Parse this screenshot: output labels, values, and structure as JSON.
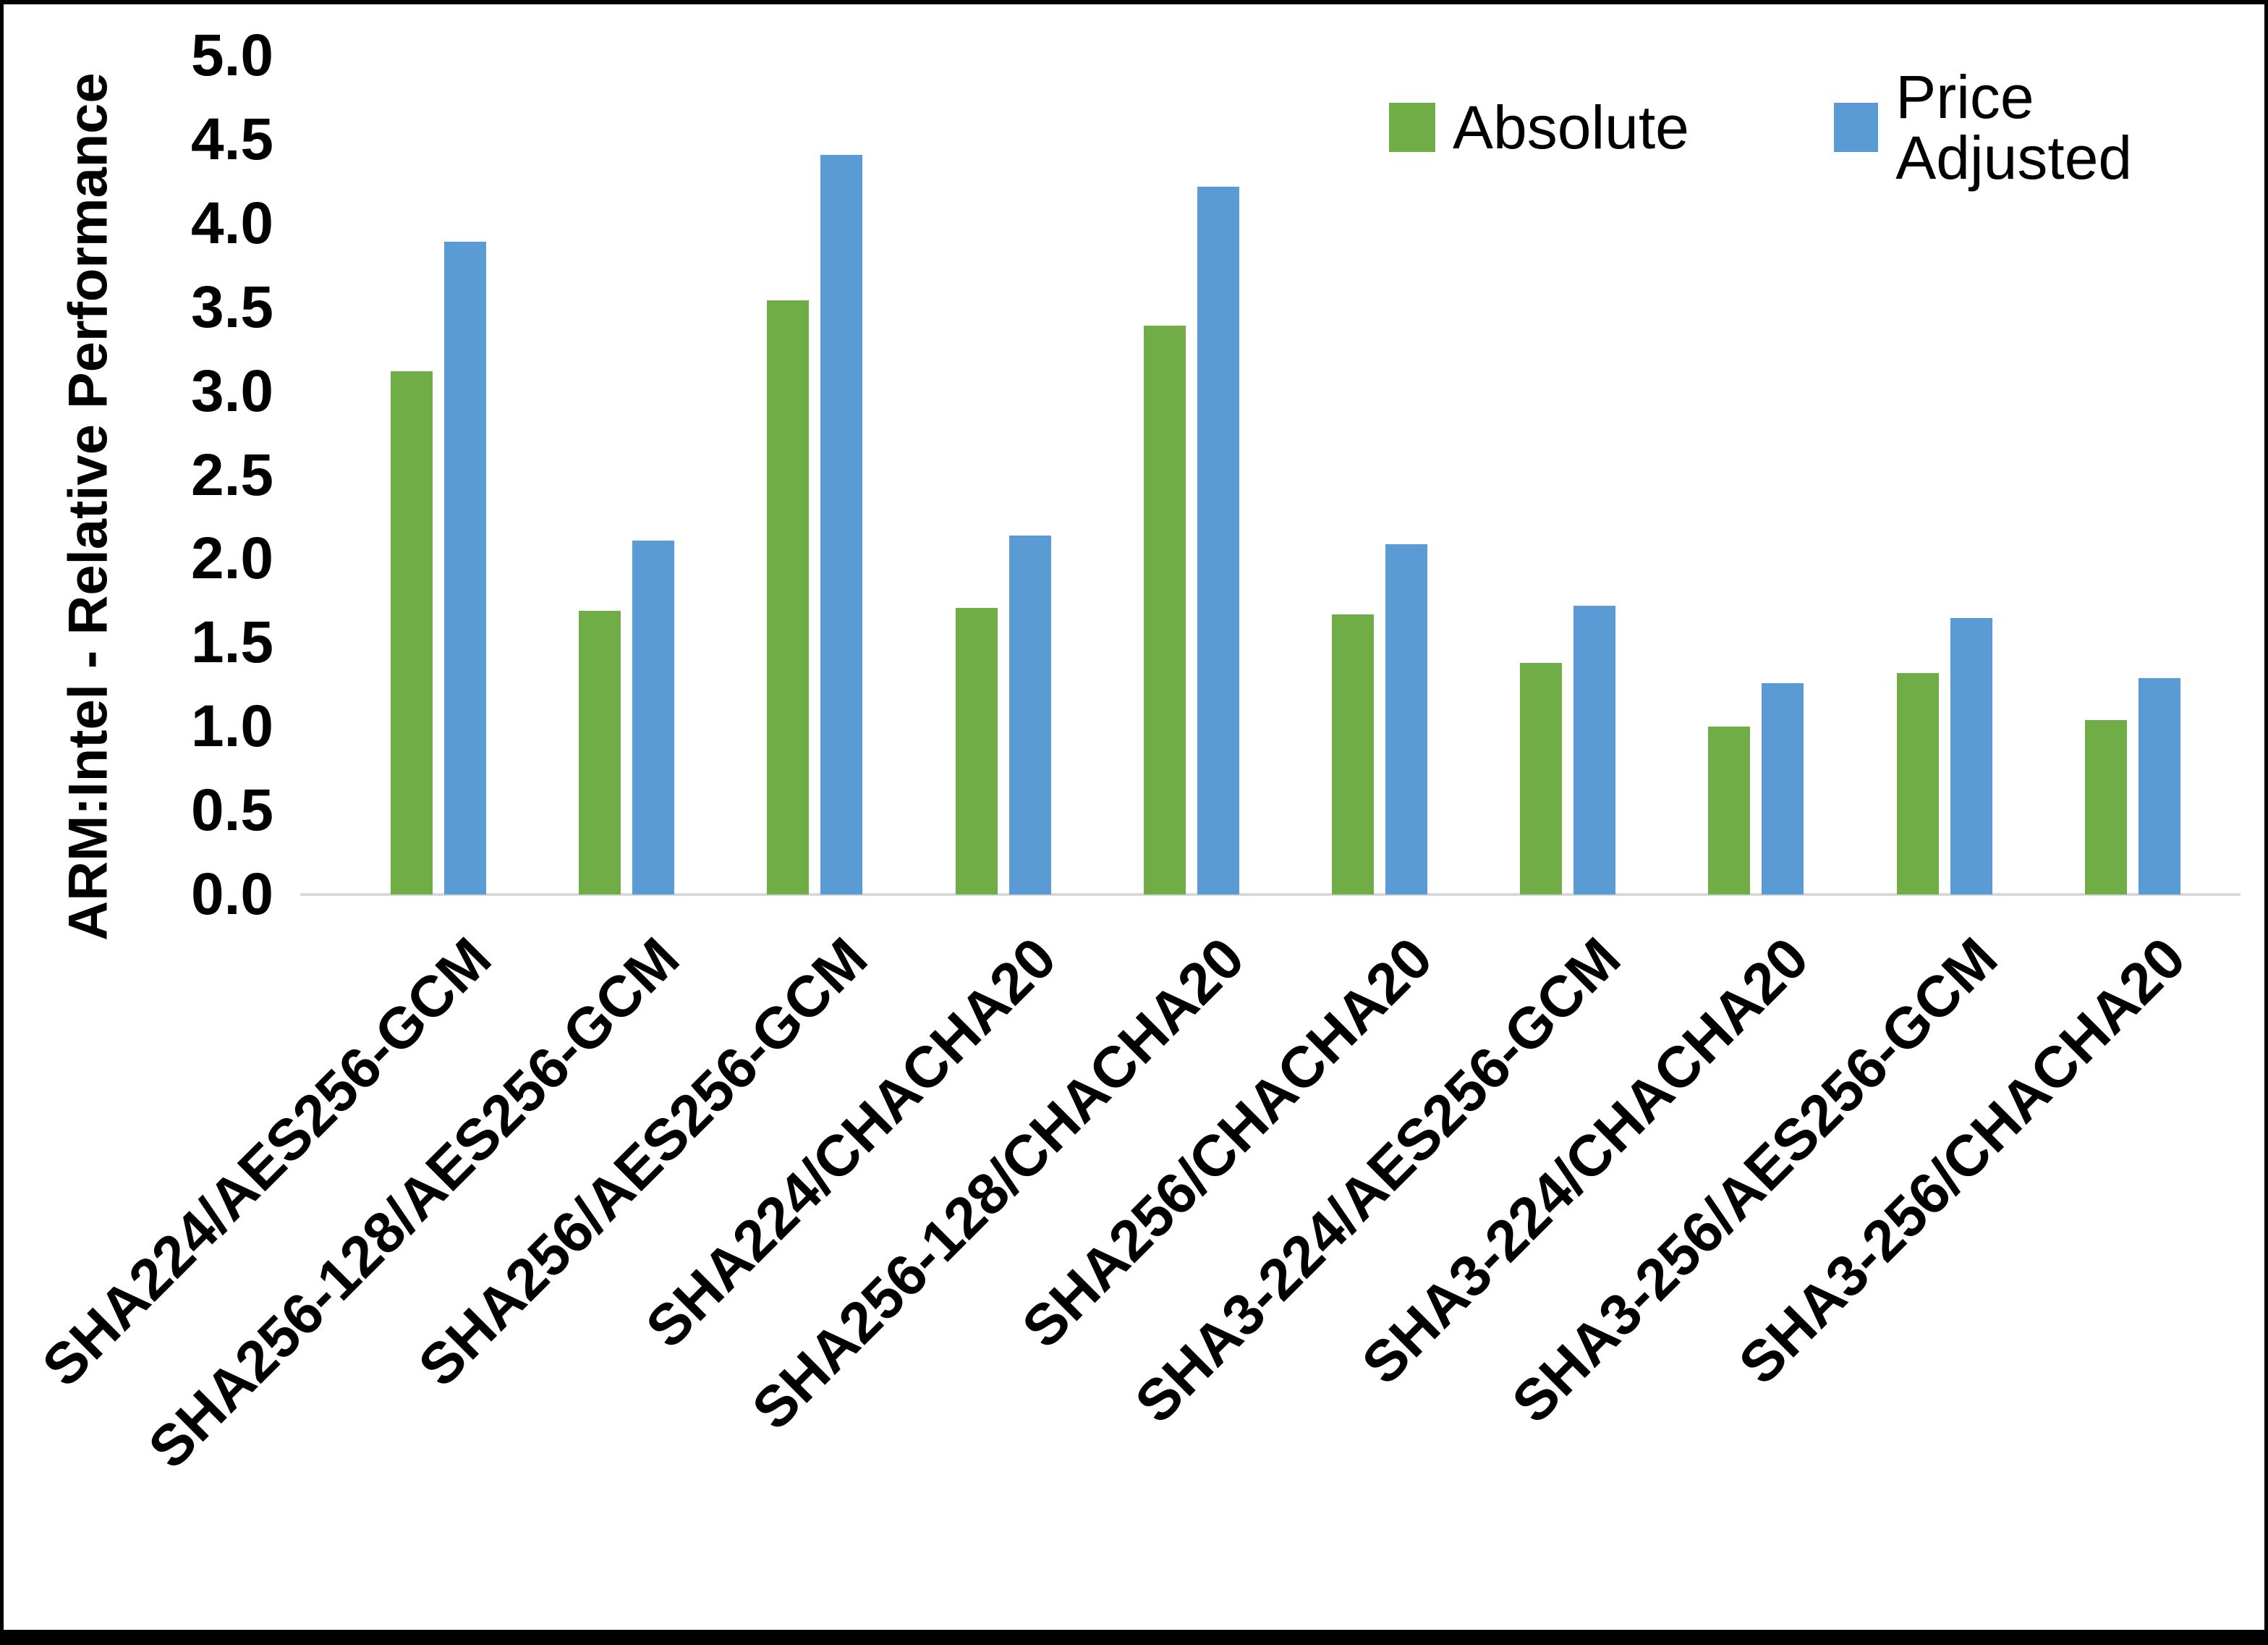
{
  "chart_data": {
    "type": "bar",
    "title": "",
    "xlabel": "",
    "ylabel": "ARM:Intel - Relative Performance",
    "ylim": [
      0.0,
      5.0
    ],
    "ytick_step": 0.5,
    "ytick_labels": [
      "0.0",
      "0.5",
      "1.0",
      "1.5",
      "2.0",
      "2.5",
      "3.0",
      "3.5",
      "4.0",
      "4.5",
      "5.0"
    ],
    "grid": false,
    "legend_position": "top-right",
    "background_color": "#ffffff",
    "axis_line_color": "#d9d9d9",
    "text_color": "#000000",
    "categories": [
      "SHA224/AES256-GCM",
      "SHA256-128/AES256-GCM",
      "SHA256/AES256-GCM",
      "SHA224/CHACHA20",
      "SHA256-128/CHACHA20",
      "SHA256/CHACHA20",
      "SHA3-224/AES256-GCM",
      "SHA3-224/CHACHA20",
      "SHA3-256/AES256-GCM",
      "SHA3-256/CHACHA20"
    ],
    "series": [
      {
        "name": "Absolute",
        "color": "#70AD47",
        "values": [
          3.12,
          1.69,
          3.54,
          1.71,
          3.39,
          1.67,
          1.38,
          1.0,
          1.32,
          1.04
        ]
      },
      {
        "name": "Price Adjusted",
        "color": "#5B9BD5",
        "values": [
          3.89,
          2.11,
          4.41,
          2.14,
          4.22,
          2.09,
          1.72,
          1.26,
          1.65,
          1.29
        ]
      }
    ]
  }
}
